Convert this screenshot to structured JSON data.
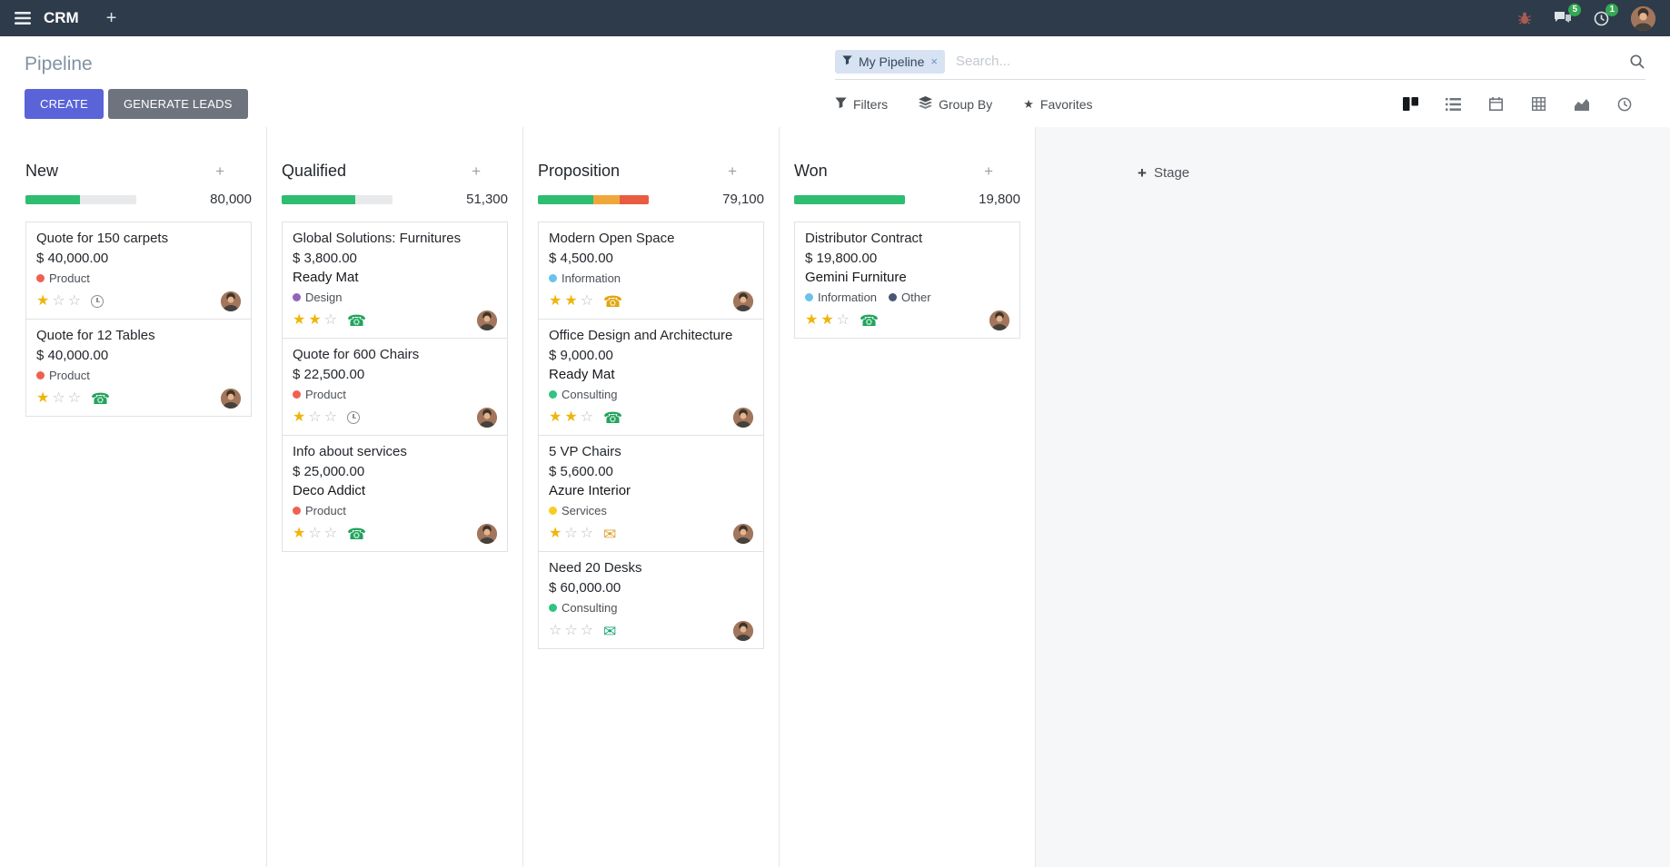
{
  "icons": {
    "plus": "+",
    "close": "×",
    "star": "★",
    "star_o": "☆",
    "phone": "☎",
    "envelope": "✉"
  },
  "colors": {
    "accent": "#5a64d8",
    "progress_green": "#2ebd71",
    "progress_amber": "#f0a73a",
    "progress_red": "#e85c41",
    "badge_green": "#34a853"
  },
  "topbar": {
    "app_name": "CRM",
    "messages_badge": "5",
    "activities_badge": "1"
  },
  "control_panel": {
    "title": "Pipeline",
    "facet_label": "My Pipeline",
    "search_placeholder": "Search...",
    "create_label": "CREATE",
    "generate_leads_label": "GENERATE LEADS",
    "filters_label": "Filters",
    "group_by_label": "Group By",
    "favorites_label": "Favorites",
    "add_stage_label": "Stage"
  },
  "board": {
    "columns": [
      {
        "name": "New",
        "total": "80,000",
        "progress": [
          {
            "color": "#2ebd71",
            "pct": 49
          }
        ],
        "cards": [
          {
            "title": "Quote for 150 carpets",
            "amount": "$ 40,000.00",
            "partner": "",
            "tags": [
              {
                "label": "Product",
                "color": "#f06050"
              }
            ],
            "stars": 1,
            "activity": {
              "type": "clock",
              "color": "#8b9196"
            }
          },
          {
            "title": "Quote for 12 Tables",
            "amount": "$ 40,000.00",
            "partner": "",
            "tags": [
              {
                "label": "Product",
                "color": "#f06050"
              }
            ],
            "stars": 1,
            "activity": {
              "type": "phone",
              "color": "#21a45d"
            }
          }
        ]
      },
      {
        "name": "Qualified",
        "total": "51,300",
        "progress": [
          {
            "color": "#2ebd71",
            "pct": 66
          }
        ],
        "cards": [
          {
            "title": "Global Solutions: Furnitures",
            "amount": "$ 3,800.00",
            "partner": "Ready Mat",
            "tags": [
              {
                "label": "Design",
                "color": "#9365b8"
              }
            ],
            "stars": 2,
            "activity": {
              "type": "phone",
              "color": "#21a45d"
            }
          },
          {
            "title": "Quote for 600 Chairs",
            "amount": "$ 22,500.00",
            "partner": "",
            "tags": [
              {
                "label": "Product",
                "color": "#f06050"
              }
            ],
            "stars": 1,
            "activity": {
              "type": "clock",
              "color": "#8b9196"
            }
          },
          {
            "title": "Info about services",
            "amount": "$ 25,000.00",
            "partner": "Deco Addict",
            "tags": [
              {
                "label": "Product",
                "color": "#f06050"
              }
            ],
            "stars": 1,
            "activity": {
              "type": "phone",
              "color": "#21a45d"
            }
          }
        ]
      },
      {
        "name": "Proposition",
        "total": "79,100",
        "progress": [
          {
            "color": "#2ebd71",
            "pct": 50
          },
          {
            "color": "#f0a73a",
            "pct": 24
          },
          {
            "color": "#e85c41",
            "pct": 26
          }
        ],
        "cards": [
          {
            "title": "Modern Open Space",
            "amount": "$ 4,500.00",
            "partner": "",
            "tags": [
              {
                "label": "Information",
                "color": "#6cc1ed"
              }
            ],
            "stars": 2,
            "activity": {
              "type": "phone",
              "color": "#e2a60e"
            }
          },
          {
            "title": "Office Design and Architecture",
            "amount": "$ 9,000.00",
            "partner": "Ready Mat",
            "tags": [
              {
                "label": "Consulting",
                "color": "#30c381"
              }
            ],
            "stars": 2,
            "activity": {
              "type": "phone",
              "color": "#21a45d"
            }
          },
          {
            "title": "5 VP Chairs",
            "amount": "$ 5,600.00",
            "partner": "Azure Interior",
            "tags": [
              {
                "label": "Services",
                "color": "#f7cd1f"
              }
            ],
            "stars": 1,
            "activity": {
              "type": "envelope",
              "color": "#dfa23a"
            }
          },
          {
            "title": "Need 20 Desks",
            "amount": "$ 60,000.00",
            "partner": "",
            "tags": [
              {
                "label": "Consulting",
                "color": "#30c381"
              }
            ],
            "stars": 0,
            "activity": {
              "type": "envelope",
              "color": "#18a577"
            }
          }
        ]
      },
      {
        "name": "Won",
        "total": "19,800",
        "progress": [
          {
            "color": "#2ebd71",
            "pct": 100
          }
        ],
        "cards": [
          {
            "title": "Distributor Contract",
            "amount": "$ 19,800.00",
            "partner": "Gemini Furniture",
            "tags": [
              {
                "label": "Information",
                "color": "#6cc1ed"
              },
              {
                "label": "Other",
                "color": "#475577"
              }
            ],
            "stars": 2,
            "activity": {
              "type": "phone",
              "color": "#21a45d"
            }
          }
        ]
      }
    ]
  }
}
